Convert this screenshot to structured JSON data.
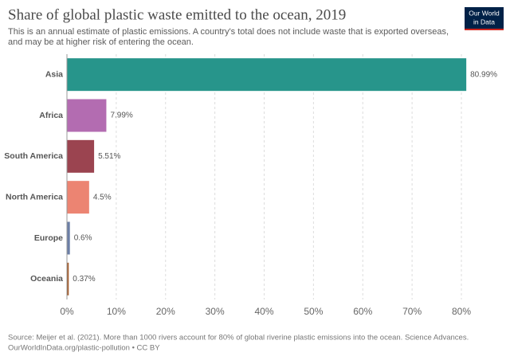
{
  "chart_data": {
    "type": "bar",
    "orientation": "horizontal",
    "title": "Share of global plastic waste emitted to the ocean, 2019",
    "subtitle": [
      "This is an annual estimate of plastic emissions. A country's total does not include waste that is exported overseas,",
      "and may be at higher risk of entering the ocean."
    ],
    "logo": [
      "Our World",
      "in Data"
    ],
    "categories": [
      "Asia",
      "Africa",
      "South America",
      "North America",
      "Europe",
      "Oceania"
    ],
    "values": [
      80.99,
      7.99,
      5.51,
      4.5,
      0.6,
      0.37
    ],
    "value_labels": [
      "80.99%",
      "7.99%",
      "5.51%",
      "4.5%",
      "0.6%",
      "0.37%"
    ],
    "colors": [
      "#27958b",
      "#b36cb1",
      "#9b4450",
      "#ec8472",
      "#6c7fa6",
      "#a55e2e"
    ],
    "xlim": [
      0,
      81
    ],
    "xticks": [
      {
        "value": 0,
        "label": "0%"
      },
      {
        "value": 10,
        "label": "10%"
      },
      {
        "value": 20,
        "label": "20%"
      },
      {
        "value": 30,
        "label": "30%"
      },
      {
        "value": 40,
        "label": "40%"
      },
      {
        "value": 50,
        "label": "50%"
      },
      {
        "value": 60,
        "label": "60%"
      },
      {
        "value": 70,
        "label": "70%"
      },
      {
        "value": 80,
        "label": "80%"
      }
    ],
    "grid": true,
    "source": [
      "Source: Meijer et al. (2021). More than 1000 rivers account for 80% of global riverine plastic emissions into the ocean. Science Advances.",
      "OurWorldInData.org/plastic-pollution • CC BY"
    ]
  }
}
